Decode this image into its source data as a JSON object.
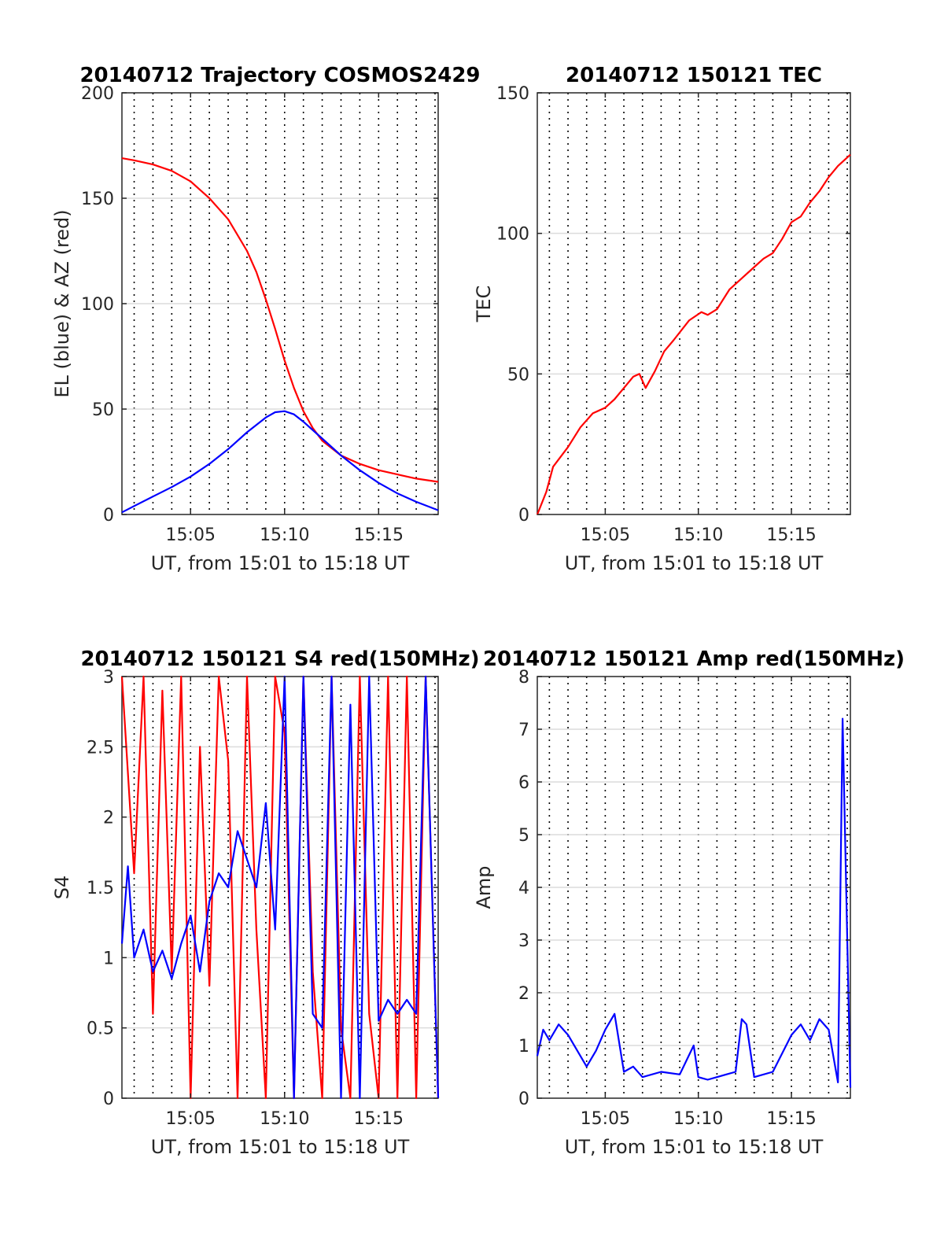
{
  "chart_data": [
    {
      "type": "line",
      "title": "20140712 Trajectory COSMOS2429",
      "xlabel": "UT, from 15:01 to 15:18 UT",
      "ylabel": "EL (blue) & AZ (red)",
      "x_tick_labels": [
        "15:05",
        "15:10",
        "15:15"
      ],
      "y_tick_labels": [
        "0",
        "50",
        "100",
        "150",
        "200"
      ],
      "xlim": [
        "15:01:21",
        "15:18:10"
      ],
      "ylim": [
        0,
        200
      ],
      "grid": true,
      "series": [
        {
          "color": "#ff0000",
          "x": [
            "15:01:21",
            "15:02:00",
            "15:03:00",
            "15:04:00",
            "15:05:00",
            "15:06:00",
            "15:07:00",
            "15:08:00",
            "15:08:30",
            "15:09:00",
            "15:09:30",
            "15:10:00",
            "15:10:30",
            "15:11:00",
            "15:11:30",
            "15:12:00",
            "15:13:00",
            "15:14:00",
            "15:15:00",
            "15:16:00",
            "15:17:00",
            "15:18:10"
          ],
          "values": [
            169,
            168,
            166,
            163,
            158,
            150,
            140,
            125,
            115,
            102,
            88,
            73,
            60,
            49,
            41,
            35,
            28,
            24,
            21,
            19,
            17,
            15.5
          ]
        },
        {
          "color": "#0000ff",
          "x": [
            "15:01:21",
            "15:02:00",
            "15:03:00",
            "15:04:00",
            "15:05:00",
            "15:06:00",
            "15:07:00",
            "15:08:00",
            "15:09:00",
            "15:09:30",
            "15:10:00",
            "15:10:30",
            "15:11:00",
            "15:12:00",
            "15:13:00",
            "15:14:00",
            "15:15:00",
            "15:16:00",
            "15:17:00",
            "15:18:10"
          ],
          "values": [
            1,
            4,
            8.5,
            13,
            18,
            24,
            31,
            39,
            46,
            48.5,
            49,
            47.5,
            44,
            36,
            28,
            21,
            15,
            10,
            6,
            2
          ]
        }
      ]
    },
    {
      "type": "line",
      "title": "20140712 150121 TEC",
      "xlabel": "UT, from 15:01 to 15:18 UT",
      "ylabel": "TEC",
      "x_tick_labels": [
        "15:05",
        "15:10",
        "15:15"
      ],
      "y_tick_labels": [
        "0",
        "50",
        "100",
        "150"
      ],
      "xlim": [
        "15:01:21",
        "15:18:10"
      ],
      "ylim": [
        0,
        150
      ],
      "grid": true,
      "series": [
        {
          "color": "#ff0000",
          "x": [
            "15:01:21",
            "15:01:50",
            "15:02:12",
            "15:03:00",
            "15:03:40",
            "15:04:20",
            "15:05:00",
            "15:05:30",
            "15:06:00",
            "15:06:30",
            "15:06:50",
            "15:07:10",
            "15:07:40",
            "15:08:10",
            "15:08:40",
            "15:09:30",
            "15:10:10",
            "15:10:30",
            "15:11:00",
            "15:11:40",
            "15:12:20",
            "15:13:00",
            "15:13:30",
            "15:14:00",
            "15:14:30",
            "15:15:00",
            "15:15:30",
            "15:16:00",
            "15:16:30",
            "15:17:00",
            "15:17:30",
            "15:18:10"
          ],
          "values": [
            0,
            8,
            17,
            24,
            31,
            36,
            38,
            41,
            45,
            49,
            50,
            45,
            51,
            58,
            62,
            69,
            72,
            71,
            73,
            80,
            84,
            88,
            91,
            93,
            98,
            104,
            106,
            111,
            115,
            120,
            124,
            128
          ]
        }
      ]
    },
    {
      "type": "line",
      "title": "20140712 150121 S4 red(150MHz)",
      "xlabel": "UT, from 15:01 to 15:18 UT",
      "ylabel": "S4",
      "x_tick_labels": [
        "15:05",
        "15:10",
        "15:15"
      ],
      "y_tick_labels": [
        "0",
        "0.5",
        "1",
        "1.5",
        "2",
        "2.5",
        "3"
      ],
      "xlim": [
        "15:01:21",
        "15:18:10"
      ],
      "ylim": [
        0,
        3
      ],
      "grid": true,
      "series": [
        {
          "color": "#ff0000",
          "x": [
            "15:01:21",
            "15:02:00",
            "15:02:30",
            "15:03:00",
            "15:03:30",
            "15:04:00",
            "15:04:30",
            "15:05:00",
            "15:05:30",
            "15:06:00",
            "15:06:30",
            "15:07:00",
            "15:07:30",
            "15:08:00",
            "15:08:30",
            "15:09:00",
            "15:09:30",
            "15:10:00",
            "15:10:30",
            "15:11:00",
            "15:11:30",
            "15:12:00",
            "15:12:30",
            "15:13:00",
            "15:13:30",
            "15:14:00",
            "15:14:30",
            "15:15:00",
            "15:15:30",
            "15:16:00",
            "15:16:30",
            "15:17:00",
            "15:17:30",
            "15:18:10"
          ],
          "values": [
            3,
            1.6,
            3,
            0.6,
            2.9,
            0.9,
            3,
            0,
            2.5,
            0.8,
            3,
            2.4,
            0,
            3,
            1.2,
            0,
            3,
            2.6,
            0,
            3,
            0.9,
            0,
            3,
            0.5,
            0,
            3,
            0.6,
            0,
            3,
            0,
            3,
            0,
            3,
            0
          ]
        },
        {
          "color": "#0000ff",
          "x": [
            "15:01:21",
            "15:01:40",
            "15:02:00",
            "15:02:30",
            "15:03:00",
            "15:03:30",
            "15:04:00",
            "15:04:30",
            "15:05:00",
            "15:05:30",
            "15:06:00",
            "15:06:30",
            "15:07:00",
            "15:07:30",
            "15:08:00",
            "15:08:30",
            "15:09:00",
            "15:09:30",
            "15:10:00",
            "15:10:30",
            "15:11:00",
            "15:11:30",
            "15:12:00",
            "15:12:30",
            "15:13:00",
            "15:13:30",
            "15:14:00",
            "15:14:30",
            "15:15:00",
            "15:15:30",
            "15:16:00",
            "15:16:30",
            "15:17:00",
            "15:17:30",
            "15:18:10"
          ],
          "values": [
            1.1,
            1.65,
            1.0,
            1.2,
            0.9,
            1.05,
            0.85,
            1.1,
            1.3,
            0.9,
            1.4,
            1.6,
            1.5,
            1.9,
            1.7,
            1.5,
            2.1,
            1.2,
            3,
            0,
            3,
            0.6,
            0.5,
            3,
            0,
            2.8,
            0,
            3,
            0.55,
            0.7,
            0.6,
            0.7,
            0.6,
            3,
            0
          ]
        }
      ]
    },
    {
      "type": "line",
      "title": "20140712 150121 Amp red(150MHz)",
      "xlabel": "UT, from 15:01 to 15:18 UT",
      "ylabel": "Amp",
      "x_tick_labels": [
        "15:05",
        "15:10",
        "15:15"
      ],
      "y_tick_labels": [
        "0",
        "1",
        "2",
        "3",
        "4",
        "5",
        "6",
        "7",
        "8"
      ],
      "xlim": [
        "15:01:21",
        "15:18:10"
      ],
      "ylim": [
        0,
        8
      ],
      "grid": true,
      "series": [
        {
          "color": "#0000ff",
          "x": [
            "15:01:21",
            "15:01:40",
            "15:02:00",
            "15:02:30",
            "15:03:00",
            "15:03:30",
            "15:04:00",
            "15:04:30",
            "15:05:00",
            "15:05:30",
            "15:06:00",
            "15:06:30",
            "15:07:00",
            "15:08:00",
            "15:09:00",
            "15:09:45",
            "15:10:00",
            "15:10:30",
            "15:11:00",
            "15:11:30",
            "15:12:00",
            "15:12:20",
            "15:12:35",
            "15:13:00",
            "15:14:00",
            "15:15:00",
            "15:15:30",
            "15:16:00",
            "15:16:30",
            "15:17:00",
            "15:17:30",
            "15:17:45",
            "15:18:10"
          ],
          "values": [
            0.8,
            1.3,
            1.1,
            1.4,
            1.2,
            0.9,
            0.6,
            0.9,
            1.3,
            1.6,
            0.5,
            0.6,
            0.4,
            0.5,
            0.45,
            1.0,
            0.4,
            0.35,
            0.4,
            0.45,
            0.5,
            1.5,
            1.4,
            0.4,
            0.5,
            1.2,
            1.4,
            1.1,
            1.5,
            1.3,
            0.3,
            7.2,
            0.2
          ]
        }
      ]
    }
  ]
}
